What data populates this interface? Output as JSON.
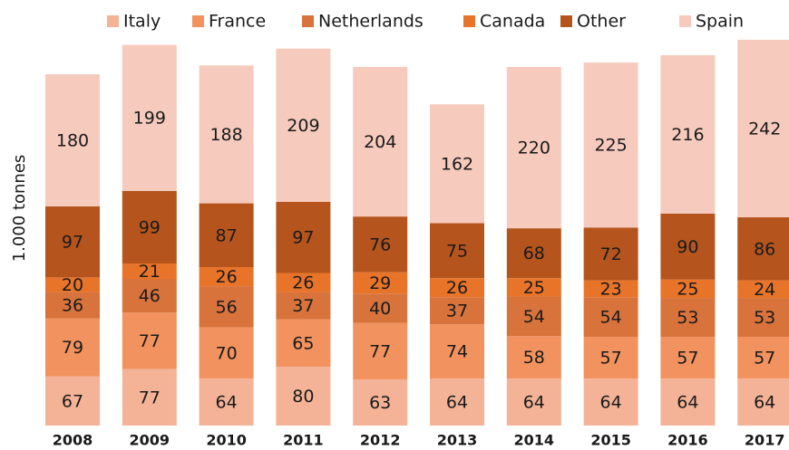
{
  "chart_data": {
    "type": "stacked_bar",
    "y_axis_label": "1.000 tonnes",
    "categories": [
      "2008",
      "2009",
      "2010",
      "2011",
      "2012",
      "2013",
      "2014",
      "2015",
      "2016",
      "2017"
    ],
    "series": [
      {
        "name": "Italy",
        "color": "#f4b397",
        "values": [
          67,
          77,
          64,
          80,
          63,
          64,
          64,
          64,
          64,
          64
        ]
      },
      {
        "name": "France",
        "color": "#f1925f",
        "values": [
          79,
          77,
          70,
          65,
          77,
          74,
          58,
          57,
          57,
          57
        ]
      },
      {
        "name": "Netherlands",
        "color": "#d8733c",
        "values": [
          36,
          46,
          56,
          37,
          40,
          37,
          54,
          54,
          53,
          53
        ]
      },
      {
        "name": "Canada",
        "color": "#e8742a",
        "values": [
          20,
          21,
          26,
          26,
          29,
          26,
          25,
          23,
          25,
          24
        ]
      },
      {
        "name": "Other",
        "color": "#b5551d",
        "values": [
          97,
          99,
          87,
          97,
          76,
          75,
          68,
          72,
          90,
          86
        ]
      },
      {
        "name": "Spain",
        "color": "#f6cbbd",
        "values": [
          180,
          199,
          188,
          209,
          204,
          162,
          220,
          225,
          216,
          242
        ]
      }
    ]
  }
}
